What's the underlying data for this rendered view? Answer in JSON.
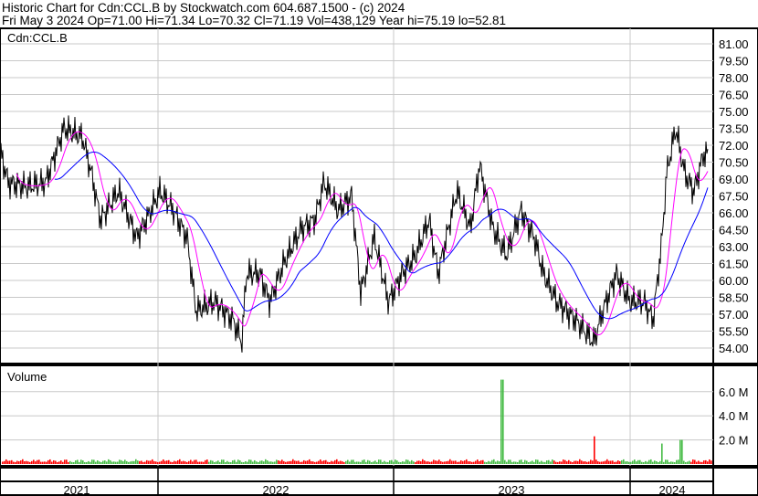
{
  "header": {
    "line1": "Historic Chart for Cdn:CCL.B by Stockwatch.com 604.687.1500 - (c) 2024",
    "line2": "Fri May  3 2024   Op=71.00   Hi=71.34   Lo=70.32   Cl=71.19   Vol=438,129   Year hi=75.19   lo=52.81"
  },
  "chart_data": {
    "type": "line",
    "symbol_label": "Cdn:CCL.B",
    "volume_label": "Volume",
    "price_ylim": [
      52.5,
      82.0
    ],
    "price_ticks": [
      "81.00",
      "79.50",
      "78.00",
      "76.50",
      "75.00",
      "73.50",
      "72.00",
      "70.50",
      "69.00",
      "67.50",
      "66.00",
      "64.50",
      "63.00",
      "61.50",
      "60.00",
      "58.50",
      "57.00",
      "55.50",
      "54.00"
    ],
    "volume_ticks": [
      "6.0 M",
      "4.0 M",
      "2.0 M"
    ],
    "volume_ylim_m": [
      0,
      8.2
    ],
    "x_labels": [
      "2021",
      "2022",
      "2023",
      "2024"
    ],
    "grid": true,
    "colors": {
      "price": "#000000",
      "ma_short": "#ff00ff",
      "ma_long": "#0000ff",
      "vol_up": "#44bb44",
      "vol_down": "#ff0000"
    },
    "price_series": [
      [
        "2021-04-30",
        71.9
      ],
      [
        "2021-05-14",
        68.7
      ],
      [
        "2021-06-12",
        68.3
      ],
      [
        "2021-07-11",
        68.7
      ],
      [
        "2021-08-08",
        73.5
      ],
      [
        "2021-09-06",
        72.7
      ],
      [
        "2021-09-20",
        69.5
      ],
      [
        "2021-10-04",
        65.4
      ],
      [
        "2021-11-01",
        67.9
      ],
      [
        "2021-11-29",
        63.8
      ],
      [
        "2021-12-14",
        65.4
      ],
      [
        "2022-01-04",
        67.9
      ],
      [
        "2022-01-25",
        66.2
      ],
      [
        "2022-02-15",
        63.8
      ],
      [
        "2022-03-01",
        57.3
      ],
      [
        "2022-03-30",
        58.1
      ],
      [
        "2022-04-27",
        56.5
      ],
      [
        "2022-05-11",
        54.5
      ],
      [
        "2022-05-18",
        60.6
      ],
      [
        "2022-06-08",
        60.6
      ],
      [
        "2022-06-23",
        58.1
      ],
      [
        "2022-07-14",
        61.4
      ],
      [
        "2022-08-11",
        64.6
      ],
      [
        "2022-09-01",
        65.4
      ],
      [
        "2022-09-15",
        68.7
      ],
      [
        "2022-10-07",
        66.2
      ],
      [
        "2022-10-28",
        67.5
      ],
      [
        "2022-11-11",
        58.9
      ],
      [
        "2022-12-02",
        63.8
      ],
      [
        "2022-12-24",
        58.1
      ],
      [
        "2023-01-14",
        60.6
      ],
      [
        "2023-02-04",
        62.2
      ],
      [
        "2023-02-25",
        65.4
      ],
      [
        "2023-03-11",
        60.6
      ],
      [
        "2023-04-09",
        67.9
      ],
      [
        "2023-04-30",
        64.6
      ],
      [
        "2023-05-14",
        70.3
      ],
      [
        "2023-06-04",
        64.6
      ],
      [
        "2023-06-25",
        62.2
      ],
      [
        "2023-07-17",
        66.2
      ],
      [
        "2023-08-07",
        63.8
      ],
      [
        "2023-08-21",
        60.6
      ],
      [
        "2023-09-11",
        58.1
      ],
      [
        "2023-10-10",
        56.5
      ],
      [
        "2023-11-07",
        54.5
      ],
      [
        "2023-11-21",
        57.3
      ],
      [
        "2023-12-12",
        60.6
      ],
      [
        "2024-01-02",
        58.1
      ],
      [
        "2024-01-24",
        58.1
      ],
      [
        "2024-02-07",
        56.5
      ],
      [
        "2024-02-21",
        63.8
      ],
      [
        "2024-02-28",
        69.5
      ],
      [
        "2024-03-13",
        73.5
      ],
      [
        "2024-03-27",
        69.5
      ],
      [
        "2024-04-10",
        67.9
      ],
      [
        "2024-04-25",
        71.2
      ],
      [
        "2024-05-03",
        71.19
      ]
    ],
    "volume_spikes_m": [
      [
        "2023-06-17",
        7.0
      ],
      [
        "2023-11-07",
        2.3
      ],
      [
        "2024-03-20",
        2.0
      ],
      [
        "2024-02-20",
        1.7
      ]
    ]
  }
}
